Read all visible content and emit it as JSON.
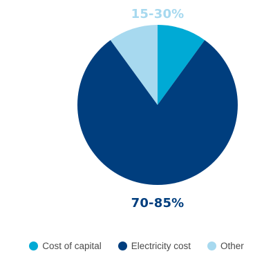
{
  "chart_data": {
    "type": "pie",
    "title": "",
    "slices": [
      {
        "name": "Cost of capital",
        "value": 10,
        "color": "#00aad5"
      },
      {
        "name": "Electricity cost",
        "value": 80,
        "color": "#003e7e"
      },
      {
        "name": "Other",
        "value": 10,
        "color": "#a7d9ef"
      }
    ],
    "data_labels": [
      {
        "text": "15-30%",
        "color": "#a7d9ef",
        "refers_to": "Cost of capital and Other"
      },
      {
        "text": "70-85%",
        "color": "#003e7e",
        "refers_to": "Electricity cost"
      }
    ],
    "legend": {
      "placement": "bottom",
      "items": [
        "Cost of capital",
        "Electricity cost",
        "Other"
      ]
    },
    "start_angle": "12 o'clock",
    "direction": "clockwise"
  }
}
